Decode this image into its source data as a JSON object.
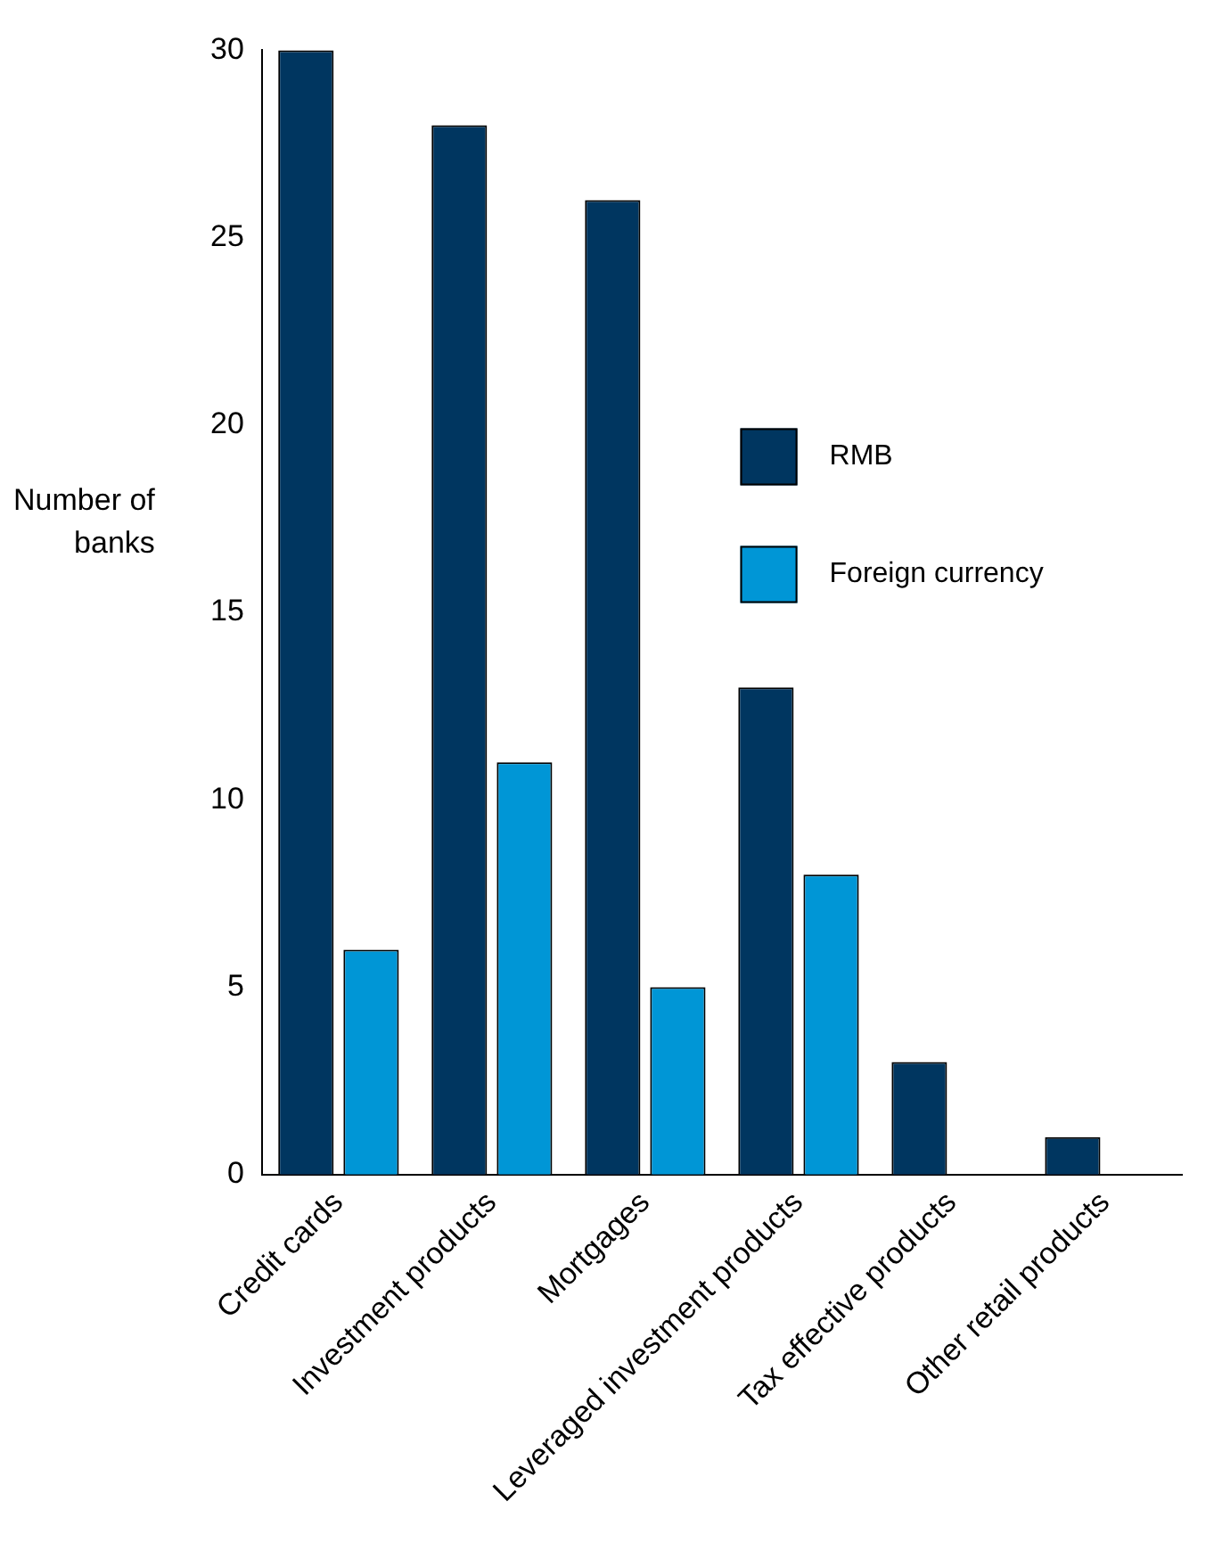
{
  "chart_data": {
    "type": "bar",
    "ylabel": "Number of banks",
    "categories": [
      "Credit cards",
      "Investment products",
      "Mortgages",
      "Leveraged investment products",
      "Tax effective products",
      "Other retail products"
    ],
    "series": [
      {
        "name": "RMB",
        "color": "#003660",
        "values": [
          30,
          28,
          26,
          13,
          3,
          1
        ]
      },
      {
        "name": "Foreign currency",
        "color": "#0096d6",
        "values": [
          6,
          11,
          5,
          8,
          null,
          null
        ]
      }
    ],
    "ylim": [
      0,
      30
    ],
    "yticks": [
      0,
      5,
      10,
      15,
      20,
      25,
      30
    ],
    "grid": false,
    "legend": "right"
  }
}
